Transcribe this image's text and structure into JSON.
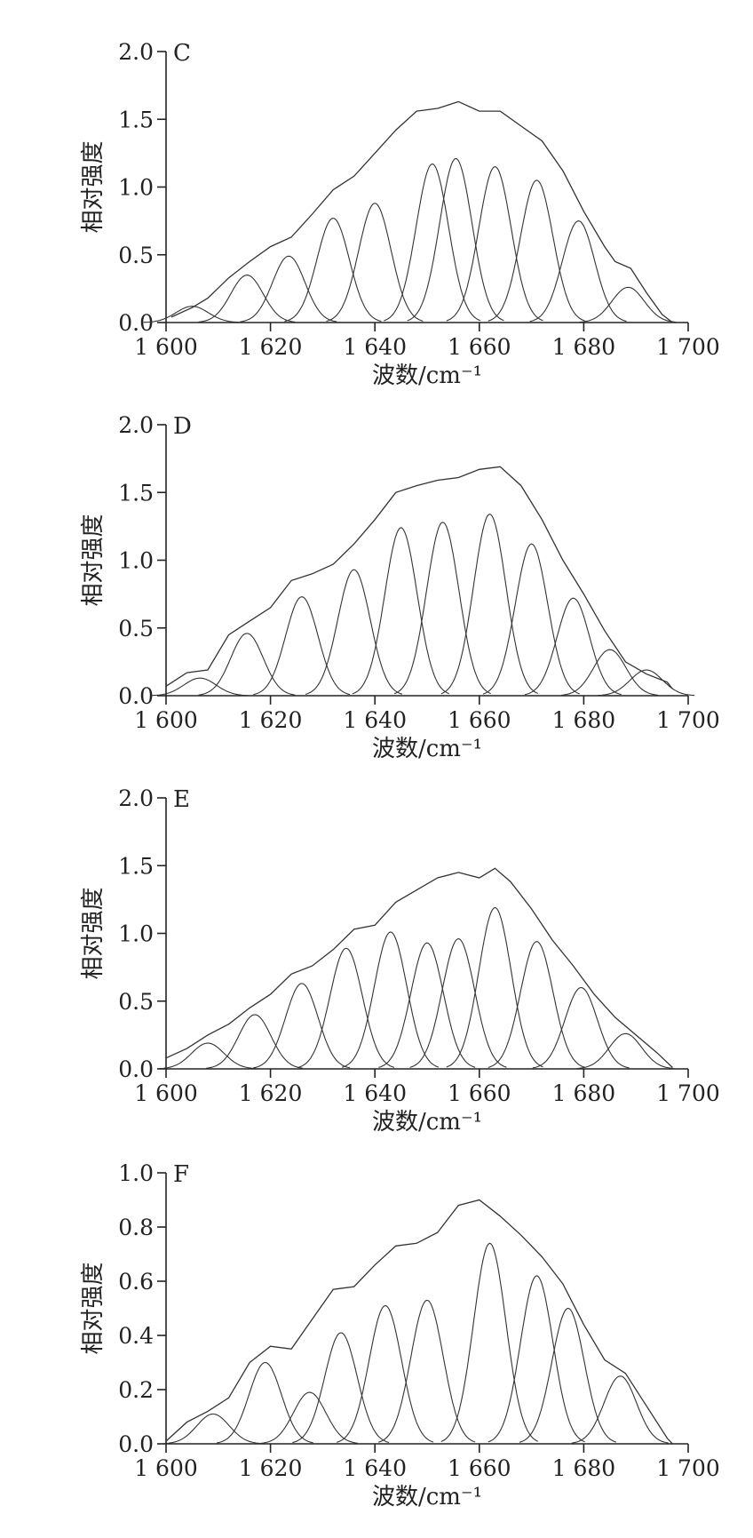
{
  "chart_data": [
    {
      "type": "line",
      "panel_label": "C",
      "xlabel": "波数/cm⁻¹",
      "ylabel": "相对强度",
      "xlim": [
        1600,
        1700
      ],
      "ylim": [
        0,
        2.0
      ],
      "x_ticks": [
        1600,
        1620,
        1640,
        1660,
        1680,
        1700
      ],
      "x_tick_labels": [
        "1 600",
        "1 620",
        "1 640",
        "1 660",
        "1 680",
        "1 700"
      ],
      "y_ticks": [
        0,
        0.5,
        1.0,
        1.5,
        2.0
      ],
      "y_tick_labels": [
        "0.0",
        "0.5",
        "1.0",
        "1.5",
        "2.0"
      ],
      "envelope": {
        "x": [
          1601,
          1605,
          1608,
          1612,
          1616,
          1620,
          1624,
          1628,
          1632,
          1636,
          1640,
          1644,
          1648,
          1652,
          1656,
          1660,
          1664,
          1668,
          1672,
          1676,
          1680,
          1684,
          1686,
          1689,
          1692,
          1695,
          1697
        ],
        "y": [
          0.04,
          0.11,
          0.18,
          0.33,
          0.45,
          0.56,
          0.63,
          0.8,
          0.98,
          1.08,
          1.25,
          1.42,
          1.56,
          1.58,
          1.63,
          1.56,
          1.56,
          1.45,
          1.34,
          1.12,
          0.82,
          0.56,
          0.45,
          0.4,
          0.22,
          0.06,
          0.0
        ]
      },
      "peaks": [
        {
          "center": 1605,
          "height": 0.12
        },
        {
          "center": 1615.5,
          "height": 0.35
        },
        {
          "center": 1623.5,
          "height": 0.49
        },
        {
          "center": 1632,
          "height": 0.77
        },
        {
          "center": 1640,
          "height": 0.88
        },
        {
          "center": 1651,
          "height": 1.17
        },
        {
          "center": 1655.5,
          "height": 1.21
        },
        {
          "center": 1663,
          "height": 1.15
        },
        {
          "center": 1671,
          "height": 1.05
        },
        {
          "center": 1679,
          "height": 0.75
        },
        {
          "center": 1688.5,
          "height": 0.26
        }
      ]
    },
    {
      "type": "line",
      "panel_label": "D",
      "xlabel": "波数/cm⁻¹",
      "ylabel": "相对强度",
      "xlim": [
        1600,
        1700
      ],
      "ylim": [
        0,
        2.0
      ],
      "x_ticks": [
        1600,
        1620,
        1640,
        1660,
        1680,
        1700
      ],
      "x_tick_labels": [
        "1 600",
        "1 620",
        "1 640",
        "1 660",
        "1 680",
        "1 700"
      ],
      "y_ticks": [
        0,
        0.5,
        1.0,
        1.5,
        2.0
      ],
      "y_tick_labels": [
        "0.0",
        "0.5",
        "1.0",
        "1.5",
        "2.0"
      ],
      "envelope": {
        "x": [
          1600,
          1604,
          1608,
          1612,
          1616,
          1620,
          1624,
          1628,
          1632,
          1636,
          1640,
          1644,
          1648,
          1652,
          1656,
          1660,
          1664,
          1668,
          1672,
          1676,
          1680,
          1684,
          1688,
          1692,
          1696,
          1697
        ],
        "y": [
          0.07,
          0.17,
          0.19,
          0.45,
          0.55,
          0.65,
          0.85,
          0.9,
          0.97,
          1.12,
          1.3,
          1.5,
          1.55,
          1.59,
          1.61,
          1.67,
          1.69,
          1.55,
          1.3,
          1.0,
          0.75,
          0.48,
          0.25,
          0.16,
          0.1,
          0.05
        ]
      },
      "peaks": [
        {
          "center": 1606.5,
          "height": 0.13
        },
        {
          "center": 1615.5,
          "height": 0.46
        },
        {
          "center": 1626,
          "height": 0.73
        },
        {
          "center": 1636,
          "height": 0.93
        },
        {
          "center": 1645,
          "height": 1.24
        },
        {
          "center": 1653,
          "height": 1.28
        },
        {
          "center": 1662,
          "height": 1.34
        },
        {
          "center": 1670,
          "height": 1.12
        },
        {
          "center": 1678,
          "height": 0.72
        },
        {
          "center": 1685,
          "height": 0.34
        },
        {
          "center": 1692,
          "height": 0.19
        }
      ]
    },
    {
      "type": "line",
      "panel_label": "E",
      "xlabel": "波数/cm⁻¹",
      "ylabel": "相对强度",
      "xlim": [
        1600,
        1700
      ],
      "ylim": [
        0,
        2.0
      ],
      "x_ticks": [
        1600,
        1620,
        1640,
        1660,
        1680,
        1700
      ],
      "x_tick_labels": [
        "1 600",
        "1 620",
        "1 640",
        "1 660",
        "1 680",
        "1 700"
      ],
      "y_ticks": [
        0,
        0.5,
        1.0,
        1.5,
        2.0
      ],
      "y_tick_labels": [
        "0.0",
        "0.5",
        "1.0",
        "1.5",
        "2.0"
      ],
      "envelope": {
        "x": [
          1600,
          1604,
          1608,
          1612,
          1616,
          1620,
          1624,
          1628,
          1632,
          1636,
          1640,
          1644,
          1648,
          1652,
          1656,
          1660,
          1663,
          1666,
          1670,
          1674,
          1678,
          1682,
          1686,
          1690,
          1694,
          1697
        ],
        "y": [
          0.08,
          0.15,
          0.25,
          0.33,
          0.45,
          0.55,
          0.7,
          0.76,
          0.88,
          1.03,
          1.06,
          1.23,
          1.32,
          1.41,
          1.45,
          1.41,
          1.48,
          1.38,
          1.18,
          0.95,
          0.76,
          0.55,
          0.38,
          0.25,
          0.12,
          0.01
        ]
      },
      "peaks": [
        {
          "center": 1608,
          "height": 0.19
        },
        {
          "center": 1617,
          "height": 0.4
        },
        {
          "center": 1626,
          "height": 0.63
        },
        {
          "center": 1634.5,
          "height": 0.89
        },
        {
          "center": 1643,
          "height": 1.01
        },
        {
          "center": 1650,
          "height": 0.93
        },
        {
          "center": 1656,
          "height": 0.96
        },
        {
          "center": 1663,
          "height": 1.19
        },
        {
          "center": 1671,
          "height": 0.94
        },
        {
          "center": 1679.5,
          "height": 0.6
        },
        {
          "center": 1688,
          "height": 0.26
        }
      ]
    },
    {
      "type": "line",
      "panel_label": "F",
      "xlabel": "波数/cm⁻¹",
      "ylabel": "相对强度",
      "xlim": [
        1600,
        1700
      ],
      "ylim": [
        0,
        1.0
      ],
      "x_ticks": [
        1600,
        1620,
        1640,
        1660,
        1680,
        1700
      ],
      "x_tick_labels": [
        "1 600",
        "1 620",
        "1 640",
        "1 660",
        "1 680",
        "1 700"
      ],
      "y_ticks": [
        0,
        0.2,
        0.4,
        0.6,
        0.8,
        1.0
      ],
      "y_tick_labels": [
        "0.0",
        "0.2",
        "0.4",
        "0.6",
        "0.8",
        "1.0"
      ],
      "envelope": {
        "x": [
          1600,
          1604,
          1608,
          1612,
          1616,
          1620,
          1624,
          1628,
          1632,
          1636,
          1640,
          1644,
          1648,
          1652,
          1656,
          1660,
          1664,
          1668,
          1672,
          1676,
          1680,
          1684,
          1688,
          1692,
          1696,
          1697
        ],
        "y": [
          0.01,
          0.08,
          0.12,
          0.17,
          0.3,
          0.36,
          0.35,
          0.46,
          0.57,
          0.58,
          0.66,
          0.73,
          0.74,
          0.78,
          0.88,
          0.9,
          0.84,
          0.77,
          0.69,
          0.59,
          0.44,
          0.31,
          0.26,
          0.14,
          0.02,
          0.0
        ]
      },
      "peaks": [
        {
          "center": 1609,
          "height": 0.11
        },
        {
          "center": 1619,
          "height": 0.3
        },
        {
          "center": 1627.5,
          "height": 0.19
        },
        {
          "center": 1633.5,
          "height": 0.41
        },
        {
          "center": 1642,
          "height": 0.51
        },
        {
          "center": 1650,
          "height": 0.53
        },
        {
          "center": 1662,
          "height": 0.74
        },
        {
          "center": 1671,
          "height": 0.62
        },
        {
          "center": 1677,
          "height": 0.5
        },
        {
          "center": 1687,
          "height": 0.25
        }
      ]
    }
  ]
}
